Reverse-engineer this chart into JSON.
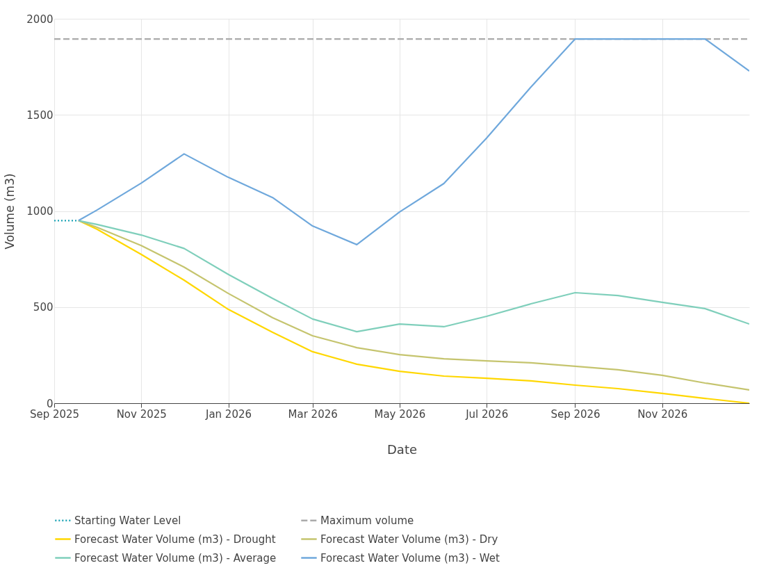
{
  "chart_data": {
    "type": "line",
    "xlabel": "Date",
    "ylabel": "Volume (m3)",
    "xlim": [
      "2025-09-01",
      "2027-01-01"
    ],
    "xticks": [
      {
        "value": "2025-09",
        "label": "Sep 2025"
      },
      {
        "value": "2025-11",
        "label": "Nov 2025"
      },
      {
        "value": "2026-01",
        "label": "Jan 2026"
      },
      {
        "value": "2026-03",
        "label": "Mar 2026"
      },
      {
        "value": "2026-05",
        "label": "May 2026"
      },
      {
        "value": "2026-07",
        "label": "Jul 2026"
      },
      {
        "value": "2026-09",
        "label": "Sep 2026"
      },
      {
        "value": "2026-11",
        "label": "Nov 2026"
      }
    ],
    "ylim": [
      0,
      2000
    ],
    "yticks": [
      0,
      500,
      1000,
      1500,
      2000
    ],
    "grid": true,
    "legend": "bottom",
    "series": [
      {
        "name": "Starting Water Level",
        "color": "#1aa3b5",
        "line_style": "dotted",
        "x": [
          "2025-09-01",
          "2025-09-18"
        ],
        "values": [
          950,
          950
        ]
      },
      {
        "name": "Maximum volume",
        "color": "#aaaaaa",
        "line_style": "dashed",
        "x": [
          "2025-09-01",
          "2027-01-01"
        ],
        "values": [
          1895,
          1895
        ]
      },
      {
        "name": "Forecast Water Volume (m3) - Drought",
        "color": "#ffd700",
        "line_style": "solid",
        "x": [
          "2025-09-18",
          "2025-10",
          "2025-11",
          "2025-12",
          "2026-01",
          "2026-02",
          "2026-03",
          "2026-04",
          "2026-05",
          "2026-06",
          "2026-07",
          "2026-08",
          "2026-09",
          "2026-10",
          "2026-11",
          "2026-12",
          "2027-01"
        ],
        "values": [
          950,
          905,
          774,
          640,
          488,
          369,
          268,
          203,
          166,
          141,
          130,
          116,
          94,
          76,
          51,
          25,
          0
        ]
      },
      {
        "name": "Forecast Water Volume (m3) - Dry",
        "color": "#c5c46e",
        "line_style": "solid",
        "x": [
          "2025-09-18",
          "2025-10",
          "2025-11",
          "2025-12",
          "2026-01",
          "2026-02",
          "2026-03",
          "2026-04",
          "2026-05",
          "2026-06",
          "2026-07",
          "2026-08",
          "2026-09",
          "2026-10",
          "2026-11",
          "2026-12",
          "2027-01"
        ],
        "values": [
          950,
          915,
          820,
          708,
          571,
          445,
          351,
          289,
          253,
          231,
          220,
          210,
          192,
          174,
          145,
          105,
          69
        ]
      },
      {
        "name": "Forecast Water Volume (m3) - Average",
        "color": "#7fcfbb",
        "line_style": "solid",
        "x": [
          "2025-09-18",
          "2025-10",
          "2025-11",
          "2025-12",
          "2026-01",
          "2026-02",
          "2026-03",
          "2026-04",
          "2026-05",
          "2026-06",
          "2026-07",
          "2026-08",
          "2026-09",
          "2026-10",
          "2026-11",
          "2026-12",
          "2027-01"
        ],
        "values": [
          950,
          930,
          875,
          805,
          670,
          545,
          438,
          372,
          412,
          398,
          452,
          517,
          575,
          560,
          525,
          492,
          412
        ]
      },
      {
        "name": "Forecast Water Volume (m3) - Wet",
        "color": "#6fa8dc",
        "line_style": "solid",
        "x": [
          "2025-09-18",
          "2025-10",
          "2025-11",
          "2025-12",
          "2026-01",
          "2026-02",
          "2026-03",
          "2026-04",
          "2026-05",
          "2026-06",
          "2026-07",
          "2026-08",
          "2026-09",
          "2026-10",
          "2026-11",
          "2026-12",
          "2027-01"
        ],
        "values": [
          950,
          1005,
          1145,
          1297,
          1175,
          1070,
          922,
          825,
          995,
          1143,
          1380,
          1645,
          1895,
          1895,
          1895,
          1895,
          1728
        ]
      }
    ]
  }
}
